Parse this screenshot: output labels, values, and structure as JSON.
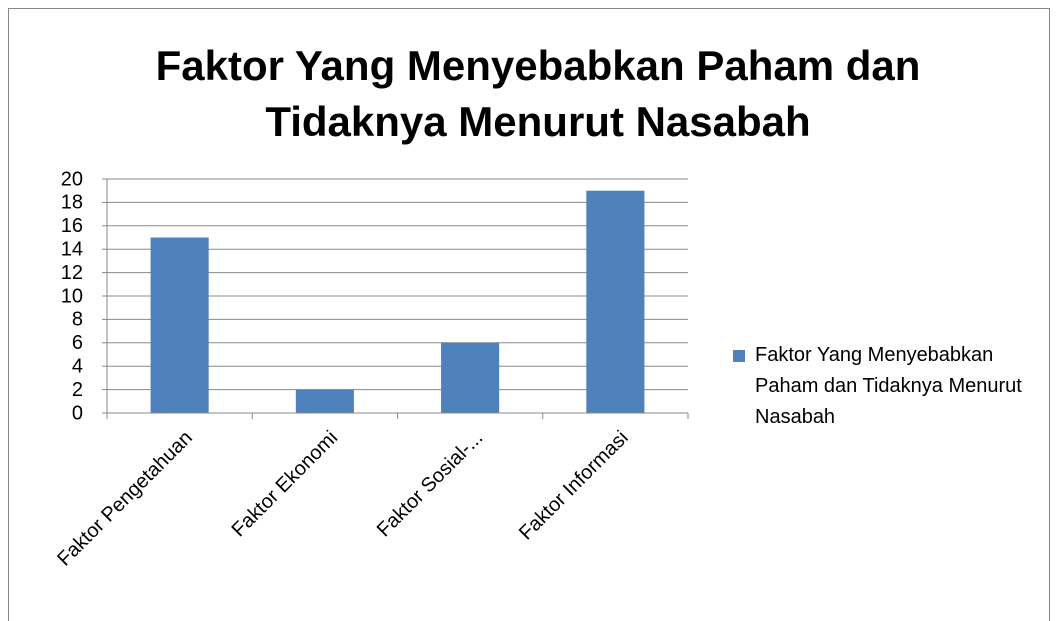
{
  "chart_data": {
    "type": "bar",
    "title": "Faktor Yang Menyebabkan Paham dan Tidaknya Menurut Nasabah",
    "categories": [
      "Faktor Pengetahuan",
      "Faktor Ekonomi",
      "Faktor Sosial-...",
      "Faktor Informasi"
    ],
    "series": [
      {
        "name": "Faktor Yang Menyebabkan Paham dan Tidaknya Menurut Nasabah",
        "color": "#4f81bd",
        "values": [
          15,
          2,
          6,
          19
        ]
      }
    ],
    "ylim": [
      0,
      20
    ],
    "yticks": [
      0,
      2,
      4,
      6,
      8,
      10,
      12,
      14,
      16,
      18,
      20
    ],
    "grid": true,
    "legend": "right"
  }
}
